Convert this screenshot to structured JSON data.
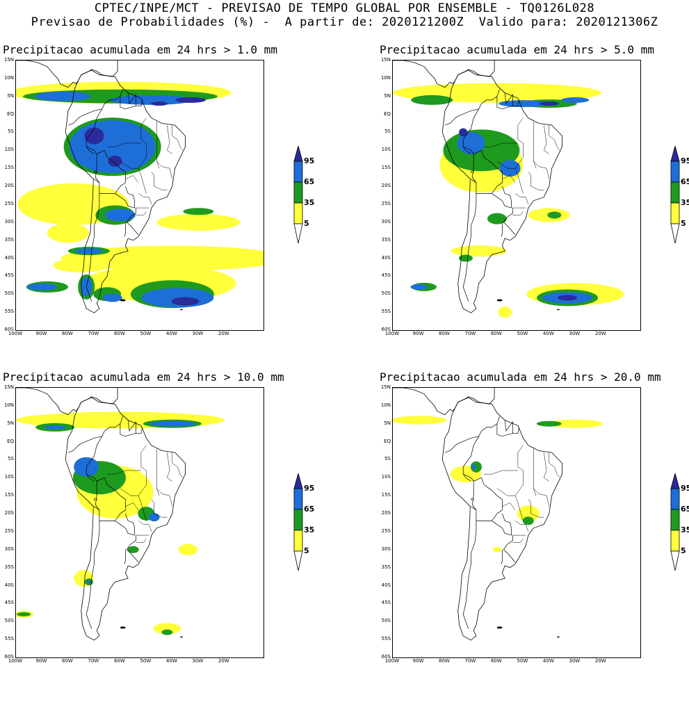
{
  "header": {
    "line1": "CPTEC/INPE/MCT - PREVISAO DE TEMPO GLOBAL POR ENSEMBLE - TQ0126L028",
    "line2": "Previsao de Probabilidades (%) -  A partir de: 2020121200Z  Valido para: 2020121306Z"
  },
  "colors": {
    "yellow": "#ffff3a",
    "green": "#1e9a1e",
    "blue": "#1e6ed7",
    "darkblue": "#2b2b9c",
    "coast": "#000000"
  },
  "legend": {
    "labels": [
      "95",
      "65",
      "35",
      "5"
    ]
  },
  "lat_labels": [
    "15N",
    "10N",
    "5N",
    "EQ",
    "5S",
    "10S",
    "15S",
    "20S",
    "25S",
    "30S",
    "35S",
    "40S",
    "45S",
    "50S",
    "55S",
    "60S"
  ],
  "lon_labels": [
    "100W",
    "90W",
    "80W",
    "70W",
    "60W",
    "50W",
    "40W",
    "30W",
    "20W"
  ],
  "panels": [
    {
      "title": "Precipitacao acumulada em 24 hrs > 1.0 mm"
    },
    {
      "title": "Precipitacao acumulada em 24 hrs > 5.0 mm"
    },
    {
      "title": "Precipitacao acumulada em 24 hrs > 10.0 mm"
    },
    {
      "title": "Precipitacao acumulada em 24 hrs > 20.0 mm"
    }
  ]
}
